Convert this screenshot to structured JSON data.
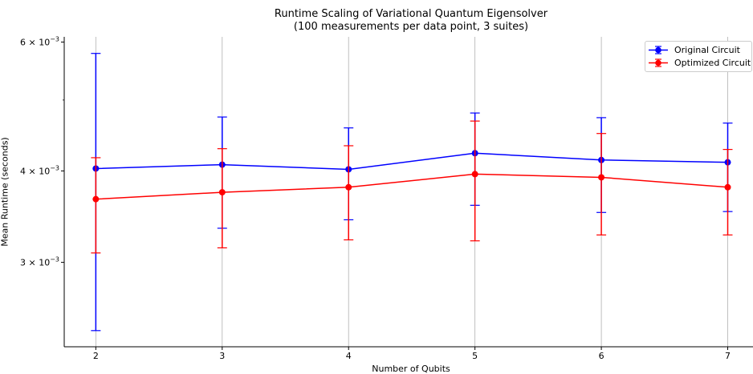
{
  "chart_data": {
    "type": "line",
    "title": "Runtime Scaling of Variational Quantum Eigensolver",
    "subtitle": "(100 measurements per data point, 3 suites)",
    "xlabel": "Number of Qubits",
    "ylabel": "Mean Runtime (seconds)",
    "x": [
      2,
      3,
      4,
      5,
      6,
      7
    ],
    "x_tick_labels": [
      "2",
      "3",
      "4",
      "5",
      "6",
      "7"
    ],
    "xlim": [
      1.75,
      7.2
    ],
    "yscale": "log",
    "ylim": [
      0.0023,
      0.0061
    ],
    "y_ticks": [
      {
        "value": 0.006,
        "base": "6",
        "exp": "−3"
      },
      {
        "value": 0.004,
        "base": "4",
        "exp": "−3"
      },
      {
        "value": 0.003,
        "base": "3",
        "exp": "−3"
      }
    ],
    "grid": "x-major",
    "legend_position": "top-right",
    "series": [
      {
        "name": "Original Circuit",
        "color": "#0000ff",
        "values": [
          0.00403,
          0.00408,
          0.00402,
          0.00423,
          0.00414,
          0.00411
        ],
        "err_low": [
          0.00242,
          0.00334,
          0.00343,
          0.00359,
          0.00351,
          0.00352
        ],
        "err_high": [
          0.00579,
          0.00474,
          0.00458,
          0.0048,
          0.00473,
          0.00465
        ]
      },
      {
        "name": "Optimized Circuit",
        "color": "#ff0000",
        "values": [
          0.00366,
          0.00374,
          0.0038,
          0.00396,
          0.00392,
          0.0038
        ],
        "err_low": [
          0.00309,
          0.00314,
          0.00322,
          0.00321,
          0.00327,
          0.00327
        ],
        "err_high": [
          0.00417,
          0.00429,
          0.00433,
          0.00468,
          0.0045,
          0.00428
        ]
      }
    ]
  }
}
